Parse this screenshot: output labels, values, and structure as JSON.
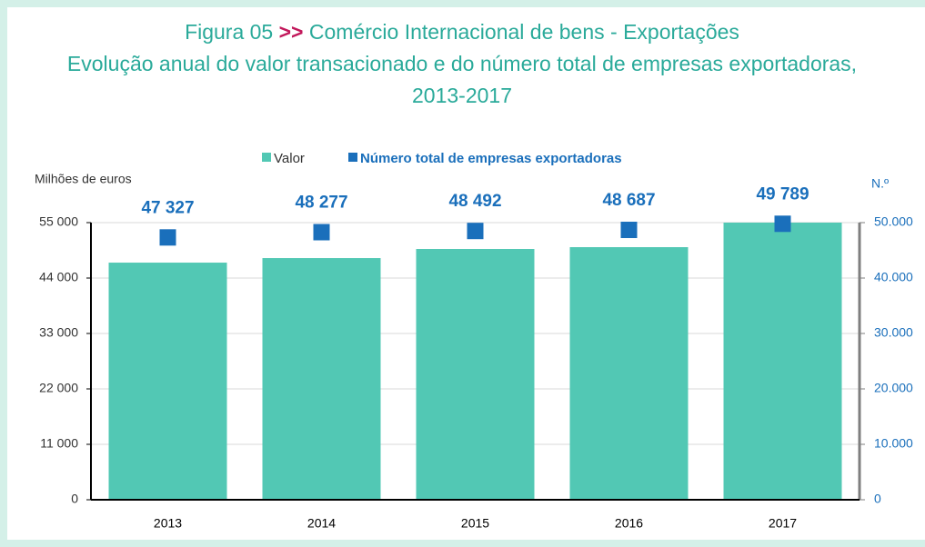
{
  "chart_data": {
    "type": "bar",
    "figure_label": "Figura 05",
    "separator": ">>",
    "title": "Comércio Internacional de bens - Exportações",
    "subtitle": "Evolução anual do valor transacionado e do número total de empresas exportadoras, 2013-2017",
    "ylabel": "Milhões de euros",
    "y2label": "N.º",
    "categories": [
      "2013",
      "2014",
      "2015",
      "2016",
      "2017"
    ],
    "series": [
      {
        "name": "Valor",
        "type": "bar",
        "color": "#52c8b4",
        "values": [
          47060,
          47960,
          49770,
          50130,
          55000
        ]
      },
      {
        "name": "Número total de empresas exportadoras",
        "type": "scatter",
        "axis": "y2",
        "color": "#1a6fbb",
        "values": [
          47327,
          48277,
          48492,
          48687,
          49789
        ],
        "value_labels": [
          "47 327",
          "48 277",
          "48 492",
          "48 687",
          "49 789"
        ]
      }
    ],
    "ylim": [
      0,
      55000
    ],
    "yticks": [
      0,
      {
        "value": 11000,
        "label": "11 000"
      },
      {
        "value": 22000,
        "label": "22 000"
      },
      {
        "value": 33000,
        "label": "33 000"
      },
      {
        "value": 44000,
        "label": "44 000"
      },
      {
        "value": 55000,
        "label": "55 000"
      }
    ],
    "y2lim": [
      0,
      50000
    ],
    "y2ticks": [
      0,
      {
        "value": 10000,
        "label": "10.000"
      },
      {
        "value": 20000,
        "label": "20.000"
      },
      {
        "value": 30000,
        "label": "30.000"
      },
      {
        "value": 40000,
        "label": "40.000"
      },
      {
        "value": 50000,
        "label": "50.000"
      }
    ],
    "grid": true,
    "legend": "top"
  }
}
